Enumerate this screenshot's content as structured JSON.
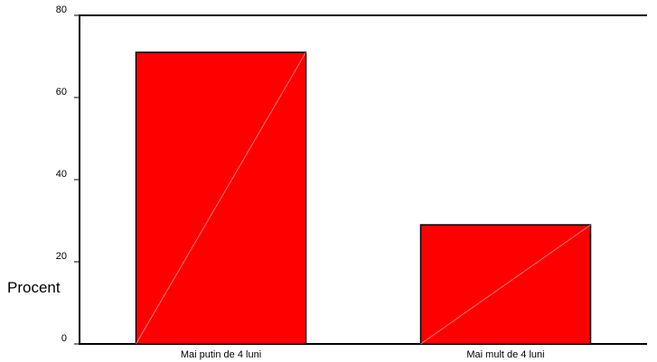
{
  "chart_data": {
    "type": "bar",
    "title": "",
    "xlabel": "",
    "ylabel": "Procent",
    "ylim": [
      0,
      80
    ],
    "yticks": [
      0,
      20,
      40,
      60,
      80
    ],
    "categories": [
      "Mai putin de 4 luni",
      "Mai mult de 4 luni"
    ],
    "values": [
      71,
      29
    ],
    "grid": false,
    "colors": {
      "bar": "#ff0000",
      "bar_edge": "#000000",
      "axis": "#000000"
    }
  }
}
